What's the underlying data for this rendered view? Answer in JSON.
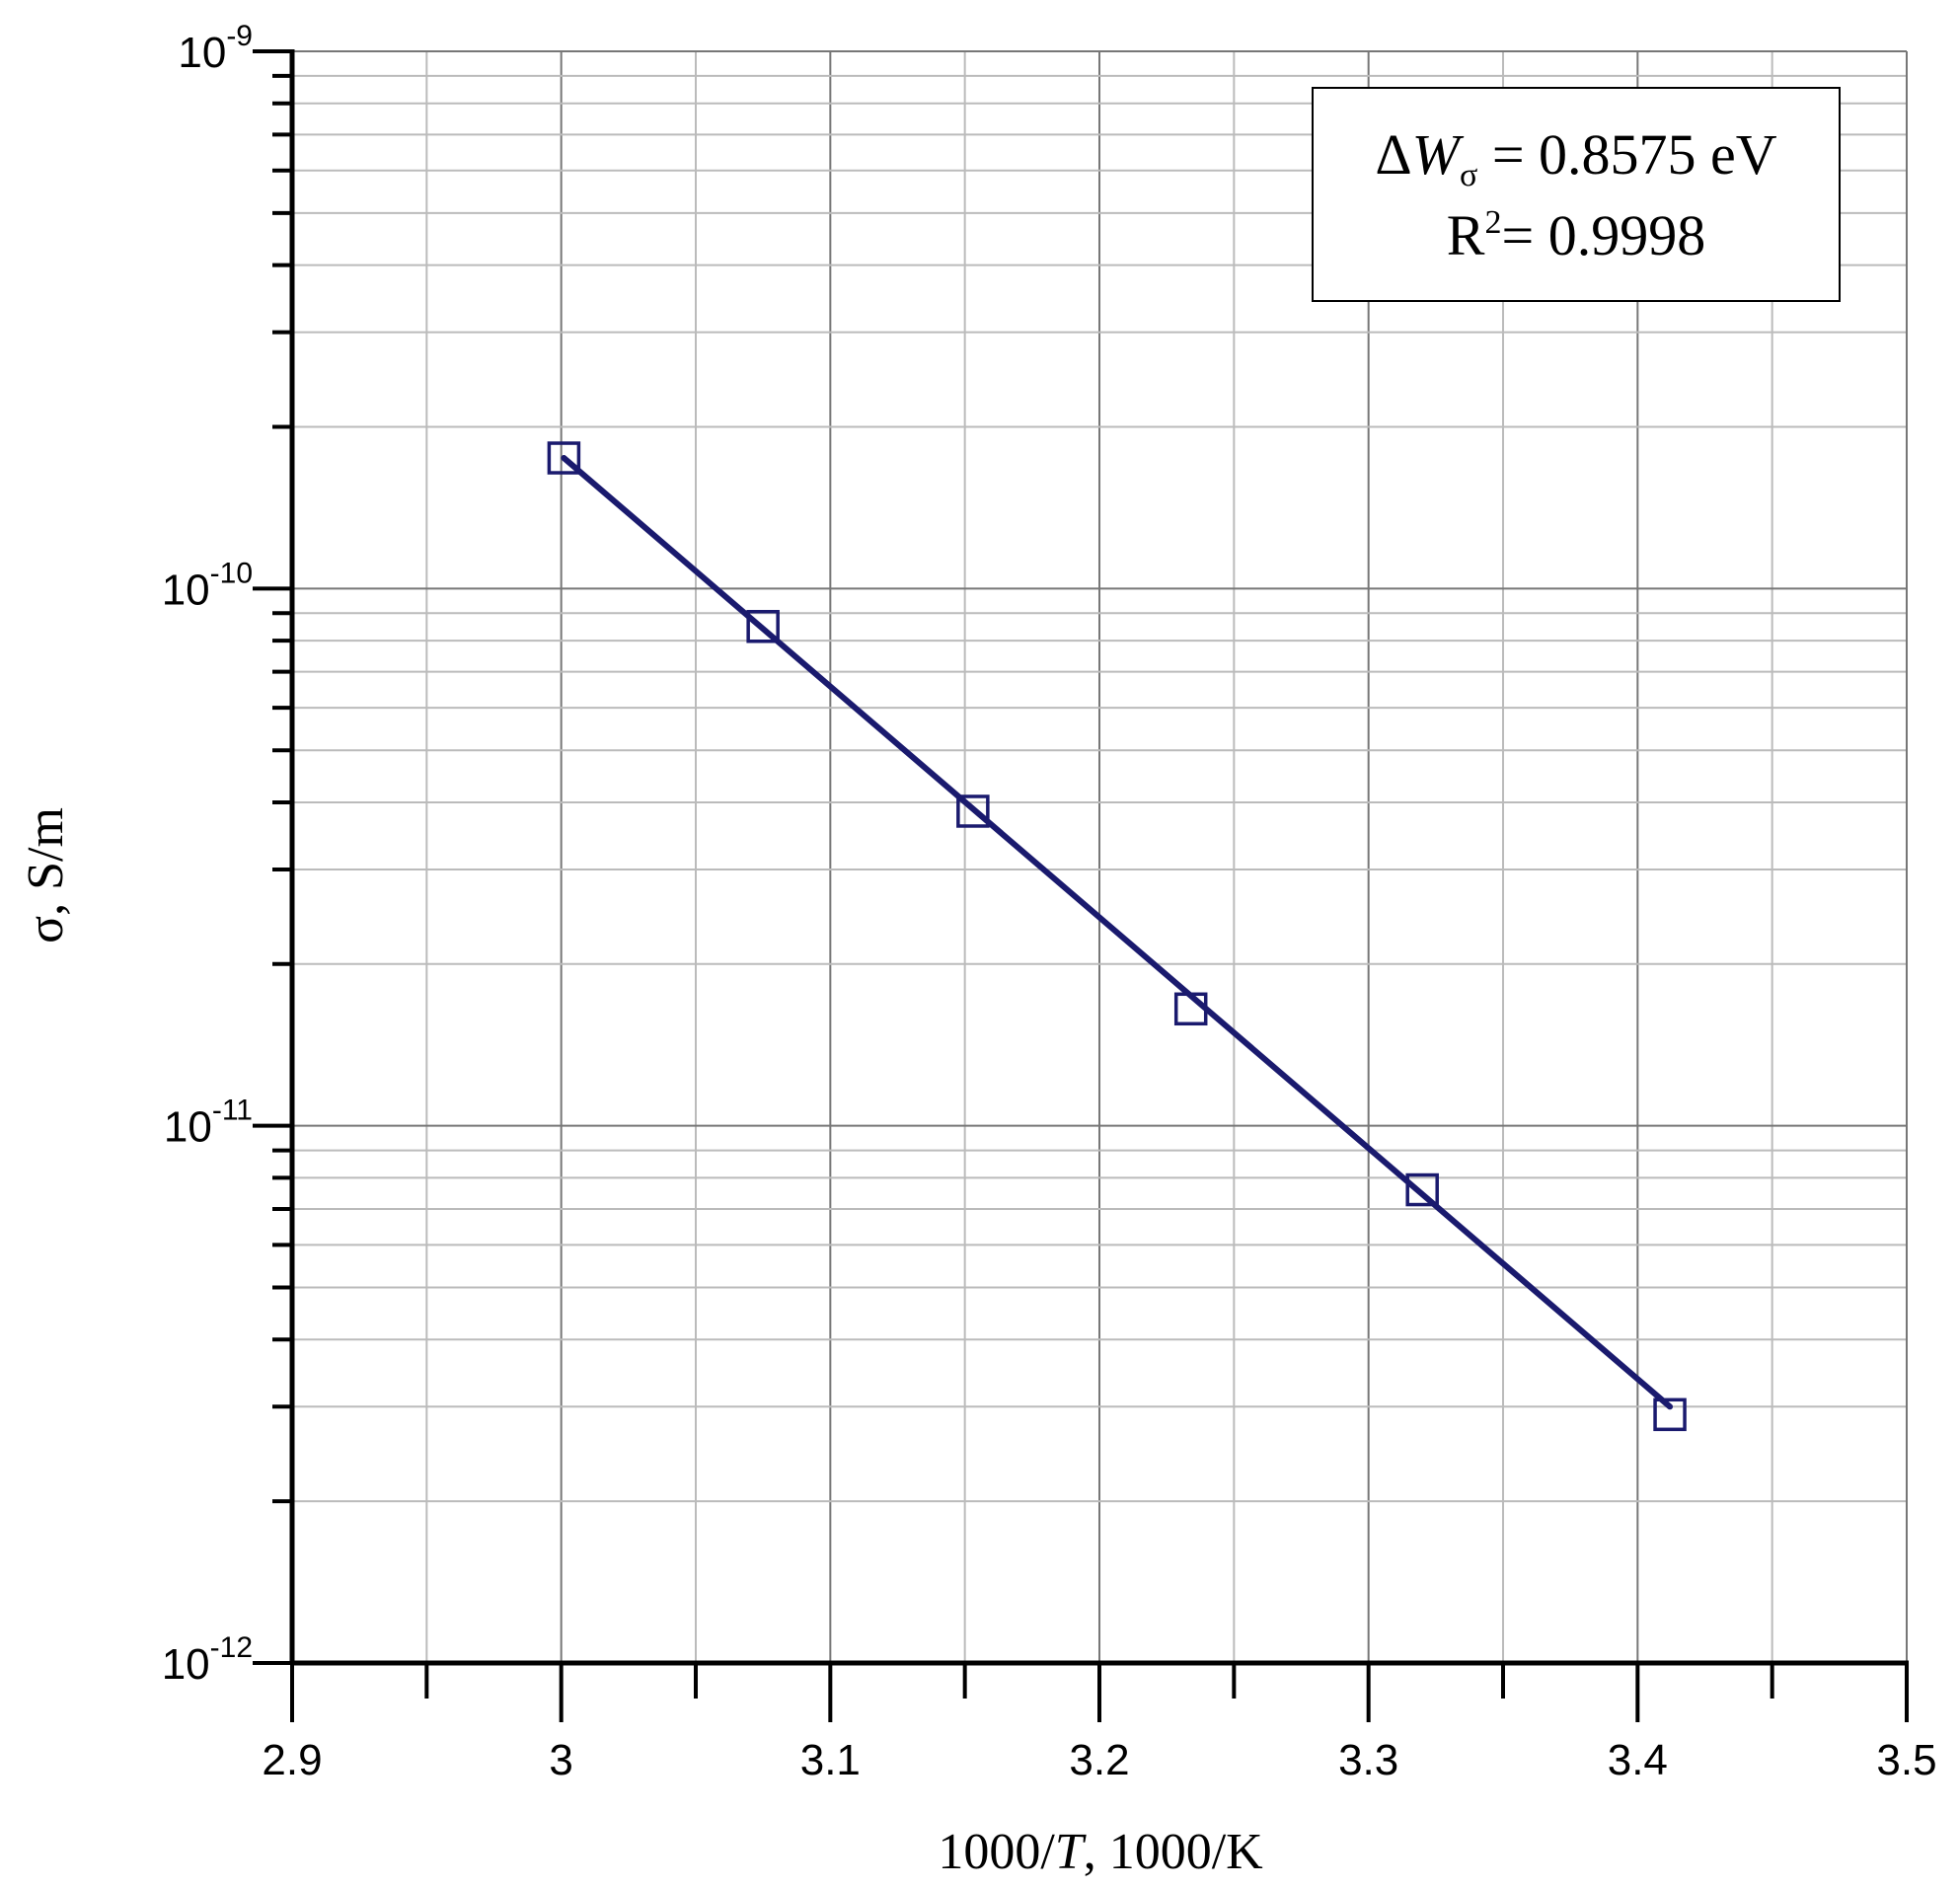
{
  "chart_data": {
    "type": "scatter",
    "xlabel_prefix": "1000/",
    "xlabel_italic": "T",
    "xlabel_suffix": ", 1000/K",
    "ylabel": "σ, S/m",
    "xlim": [
      2.9,
      3.5
    ],
    "ylim": [
      1e-12,
      1e-09
    ],
    "yscale": "log",
    "grid": true,
    "x_ticks": [
      "2.9",
      "3",
      "3.1",
      "3.2",
      "3.3",
      "3.4",
      "3.5"
    ],
    "y_ticks": [
      {
        "base": "10",
        "exp": "-9"
      },
      {
        "base": "10",
        "exp": "-10"
      },
      {
        "base": "10",
        "exp": "-11"
      },
      {
        "base": "10",
        "exp": "-12"
      }
    ],
    "series": [
      {
        "marker": "open-square",
        "color": "#1a1a6e",
        "x": [
          3.001,
          3.075,
          3.153,
          3.234,
          3.32,
          3.412
        ],
        "y": [
          1.75e-10,
          8.5e-11,
          3.85e-11,
          1.65e-11,
          7.6e-12,
          2.9e-12
        ]
      }
    ],
    "fit_line": {
      "color": "#1a1a6e",
      "x": [
        3.001,
        3.412
      ],
      "y": [
        1.75e-10,
        3e-12
      ]
    },
    "annotation": {
      "line1_symbol": "Δ",
      "line1_var": "W",
      "line1_sub": "σ",
      "line1_rest": " = 0.8575 eV",
      "line2_base": "R",
      "line2_sup": "2",
      "line2_rest": "= 0.9998",
      "position": "top-right"
    }
  }
}
